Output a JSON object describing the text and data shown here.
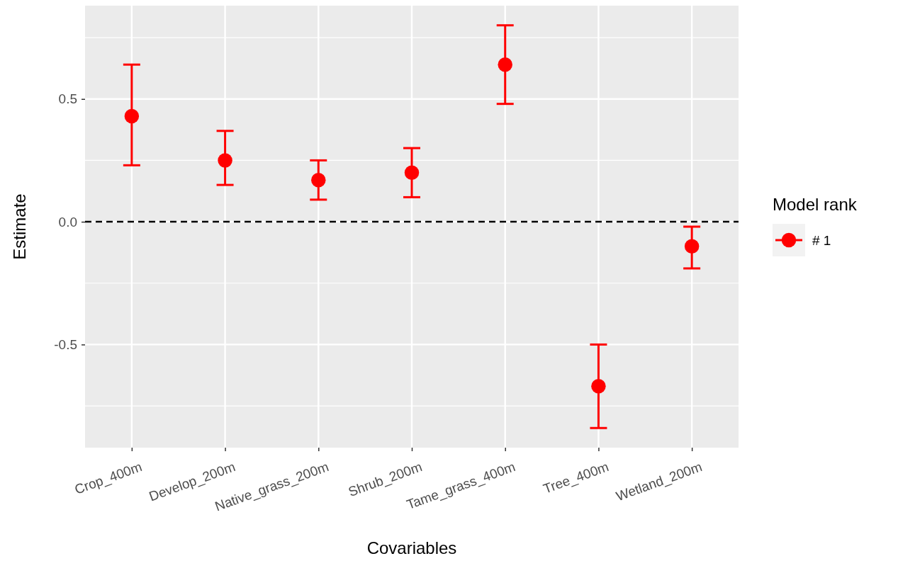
{
  "chart_data": {
    "type": "scatter",
    "xlabel": "Covariables",
    "ylabel": "Estimate",
    "legend_title": "Model rank",
    "categories": [
      "Crop_400m",
      "Develop_200m",
      "Native_grass_200m",
      "Shrub_200m",
      "Tame_grass_400m",
      "Tree_400m",
      "Wetland_200m"
    ],
    "series": [
      {
        "name": "# 1",
        "color": "#ff0000",
        "values": [
          0.43,
          0.25,
          0.17,
          0.2,
          0.64,
          -0.67,
          -0.1
        ],
        "errors": [
          [
            0.23,
            0.64
          ],
          [
            0.15,
            0.37
          ],
          [
            0.09,
            0.25
          ],
          [
            0.1,
            0.3
          ],
          [
            0.48,
            0.8
          ],
          [
            -0.84,
            -0.5
          ],
          [
            -0.19,
            -0.02
          ]
        ]
      }
    ],
    "ylim": [
      -0.92,
      0.88
    ],
    "yticks": [
      {
        "value": -0.75,
        "label": null
      },
      {
        "value": -0.5,
        "label": "-0.5"
      },
      {
        "value": -0.25,
        "label": null
      },
      {
        "value": 0,
        "label": "0.0"
      },
      {
        "value": 0.25,
        "label": null
      },
      {
        "value": 0.5,
        "label": "0.5"
      },
      {
        "value": 0.75,
        "label": null
      }
    ],
    "ref_lines": [
      {
        "axis": "y",
        "value": 0,
        "color": "#000000",
        "line_style": "dashed"
      }
    ],
    "grid": true,
    "legend": "right",
    "marker": "circle"
  }
}
